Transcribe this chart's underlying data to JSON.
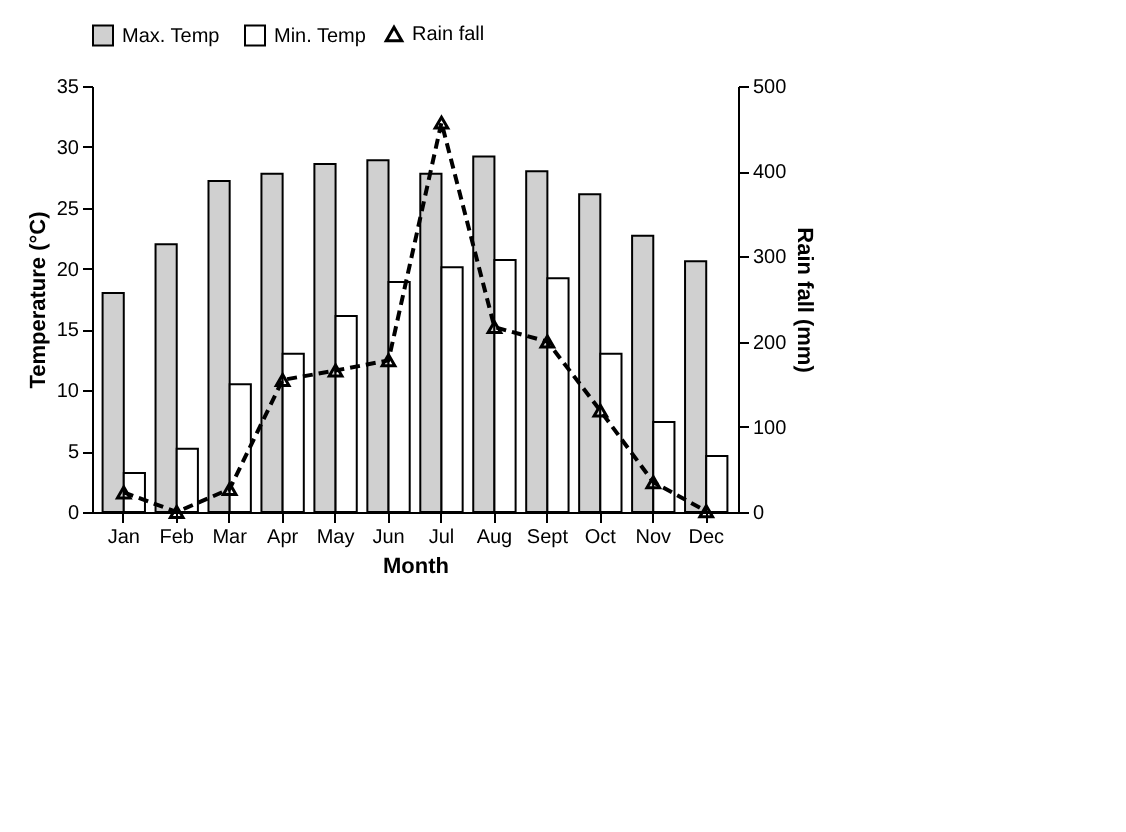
{
  "chart_data": {
    "type": "bar",
    "xlabel": "Month",
    "ylabel": "Temperature (°C)",
    "y2label": "Rain fall (mm)",
    "categories": [
      "Jan",
      "Feb",
      "Mar",
      "Apr",
      "May",
      "Jun",
      "Jul",
      "Aug",
      "Sept",
      "Oct",
      "Nov",
      "Dec"
    ],
    "series": [
      {
        "name": "Max. Temp",
        "color": "#d0d0d0",
        "values": [
          18,
          22,
          27.2,
          27.8,
          28.6,
          28.9,
          27.8,
          29.2,
          28,
          26.1,
          22.7,
          20.6
        ]
      },
      {
        "name": "Min. Temp",
        "color": "#ffffff",
        "values": [
          3.2,
          5.2,
          10.5,
          13,
          16.1,
          18.9,
          20.1,
          20.7,
          19.2,
          13,
          7.4,
          4.6
        ]
      },
      {
        "name": "Rain fall",
        "type": "line",
        "axis": "y2",
        "color": "#000000",
        "marker": "triangle",
        "line_style": "dashed",
        "values": [
          23,
          0,
          27,
          155,
          166,
          178,
          457,
          217,
          200,
          119,
          35,
          1
        ]
      }
    ],
    "ylim": [
      0,
      35
    ],
    "yticks": [
      0,
      5,
      10,
      15,
      20,
      25,
      30,
      35
    ],
    "y2lim": [
      0,
      500
    ],
    "y2ticks": [
      0,
      100,
      200,
      300,
      400,
      500
    ],
    "grid": false,
    "legend": "top"
  }
}
